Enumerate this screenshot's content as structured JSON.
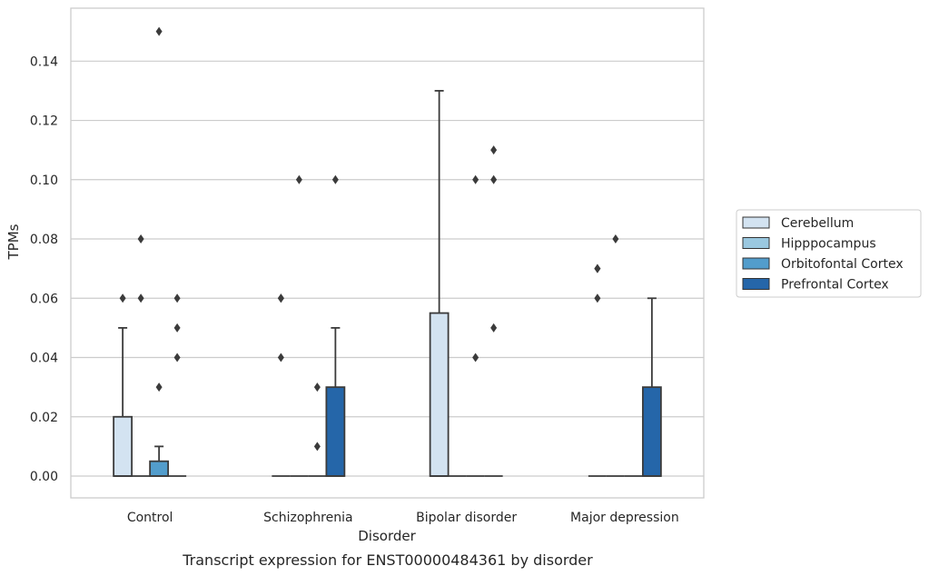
{
  "chart_data": {
    "type": "boxplot",
    "xlabel": "Disorder",
    "ylabel": "TPMs",
    "caption": "Transcript expression for ENST00000484361 by disorder",
    "ylim": [
      -0.007,
      0.157
    ],
    "yticks": [
      0.0,
      0.02,
      0.04,
      0.06,
      0.08,
      0.1,
      0.12,
      0.14
    ],
    "ytick_labels": [
      "0.00",
      "0.02",
      "0.04",
      "0.06",
      "0.08",
      "0.10",
      "0.12",
      "0.14"
    ],
    "grid": "horizontal",
    "legend_position": "right",
    "categories": [
      "Control",
      "Schizophrenia",
      "Bipolar disorder",
      "Major depression"
    ],
    "series": [
      {
        "name": "Cerebellum",
        "color": "#d3e3f1",
        "boxes": [
          {
            "q1": 0.0,
            "median": 0.0,
            "q3": 0.02,
            "whisker_low": 0.0,
            "whisker_high": 0.05,
            "outliers": [
              0.06
            ]
          },
          {
            "q1": 0.0,
            "median": 0.0,
            "q3": 0.0,
            "whisker_low": 0.0,
            "whisker_high": 0.0,
            "outliers": [
              0.04,
              0.06,
              0.06
            ]
          },
          {
            "q1": 0.0,
            "median": 0.0,
            "q3": 0.055,
            "whisker_low": 0.0,
            "whisker_high": 0.13,
            "outliers": []
          },
          {
            "q1": 0.0,
            "median": 0.0,
            "q3": 0.0,
            "whisker_low": 0.0,
            "whisker_high": 0.0,
            "outliers": [
              0.06,
              0.07,
              0.07
            ]
          }
        ]
      },
      {
        "name": "Hipppocampus",
        "color": "#9ac8e0",
        "boxes": [
          {
            "q1": 0.0,
            "median": 0.0,
            "q3": 0.0,
            "whisker_low": 0.0,
            "whisker_high": 0.0,
            "outliers": [
              0.06,
              0.08
            ]
          },
          {
            "q1": 0.0,
            "median": 0.0,
            "q3": 0.0,
            "whisker_low": 0.0,
            "whisker_high": 0.0,
            "outliers": [
              0.1
            ]
          },
          {
            "q1": 0.0,
            "median": 0.0,
            "q3": 0.0,
            "whisker_low": 0.0,
            "whisker_high": 0.0,
            "outliers": []
          },
          {
            "q1": 0.0,
            "median": 0.0,
            "q3": 0.0,
            "whisker_low": 0.0,
            "whisker_high": 0.0,
            "outliers": [
              0.08
            ]
          }
        ]
      },
      {
        "name": "Orbitofontal Cortex",
        "color": "#529dcc",
        "boxes": [
          {
            "q1": 0.0,
            "median": 0.0,
            "q3": 0.005,
            "whisker_low": 0.0,
            "whisker_high": 0.01,
            "outliers": [
              0.03,
              0.15
            ]
          },
          {
            "q1": 0.0,
            "median": 0.0,
            "q3": 0.0,
            "whisker_low": 0.0,
            "whisker_high": 0.0,
            "outliers": [
              0.01,
              0.03
            ]
          },
          {
            "q1": 0.0,
            "median": 0.0,
            "q3": 0.0,
            "whisker_low": 0.0,
            "whisker_high": 0.0,
            "outliers": [
              0.04,
              0.1
            ]
          },
          {
            "q1": 0.0,
            "median": 0.0,
            "q3": 0.0,
            "whisker_low": 0.0,
            "whisker_high": 0.0,
            "outliers": []
          }
        ]
      },
      {
        "name": "Prefrontal Cortex",
        "color": "#2566a9",
        "boxes": [
          {
            "q1": 0.0,
            "median": 0.0,
            "q3": 0.0,
            "whisker_low": 0.0,
            "whisker_high": 0.0,
            "outliers": [
              0.04,
              0.05,
              0.06
            ]
          },
          {
            "q1": 0.0,
            "median": 0.0,
            "q3": 0.03,
            "whisker_low": 0.0,
            "whisker_high": 0.05,
            "outliers": [
              0.1
            ]
          },
          {
            "q1": 0.0,
            "median": 0.0,
            "q3": 0.0,
            "whisker_low": 0.0,
            "whisker_high": 0.0,
            "outliers": [
              0.05,
              0.1,
              0.11
            ]
          },
          {
            "q1": 0.0,
            "median": 0.0,
            "q3": 0.03,
            "whisker_low": 0.0,
            "whisker_high": 0.06,
            "outliers": []
          }
        ]
      }
    ]
  }
}
